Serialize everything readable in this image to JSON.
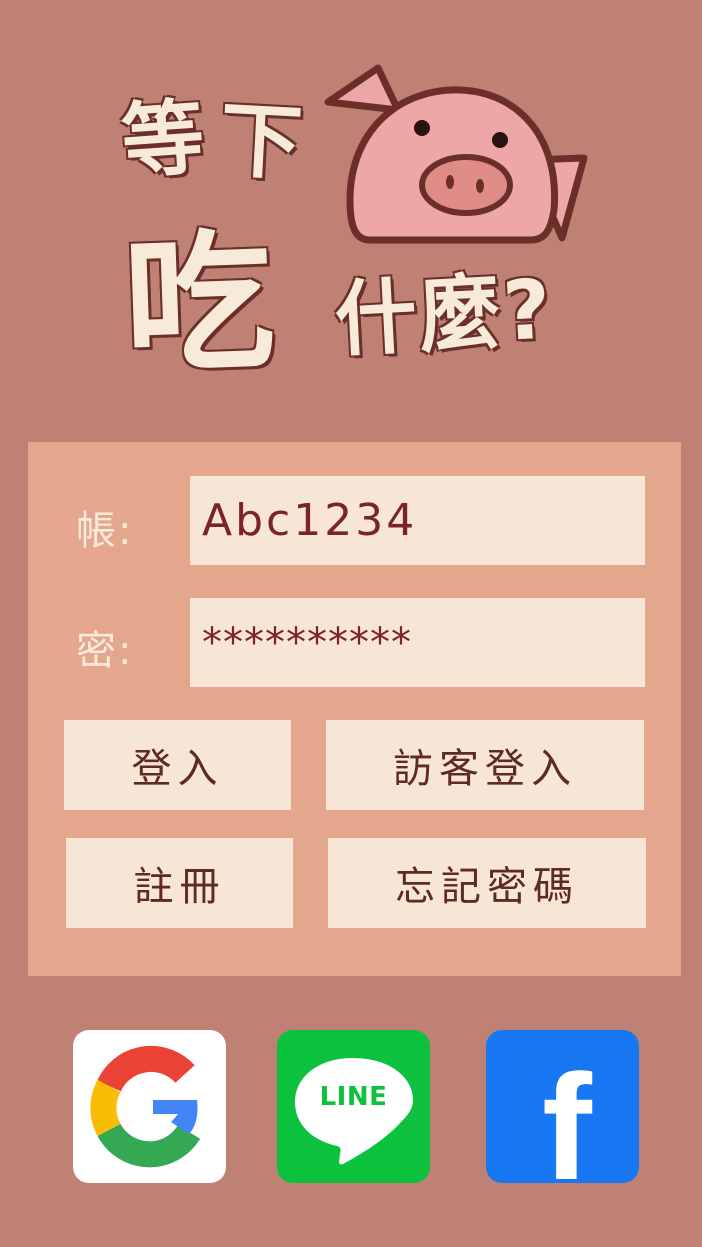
{
  "logo": {
    "line1_char1": "等",
    "line1_char2": "下",
    "line2_big": "吃",
    "line2_rest": "什麼?"
  },
  "form": {
    "account_label": "帳:",
    "account_value": "Abc1234",
    "password_label": "密:",
    "password_value": "**********"
  },
  "buttons": {
    "login": "登入",
    "guest_login": "訪客登入",
    "register": "註冊",
    "forgot_password": "忘記密碼"
  },
  "social": {
    "line_text": "LINE",
    "facebook_glyph": "f",
    "icons": [
      "google-icon",
      "line-icon",
      "facebook-icon"
    ]
  },
  "colors": {
    "background": "#bf8174",
    "panel": "#e4a68c",
    "field": "#f7e6d5",
    "input_text": "#7a2424",
    "line_green": "#0cc13d",
    "facebook_blue": "#1877f2"
  }
}
